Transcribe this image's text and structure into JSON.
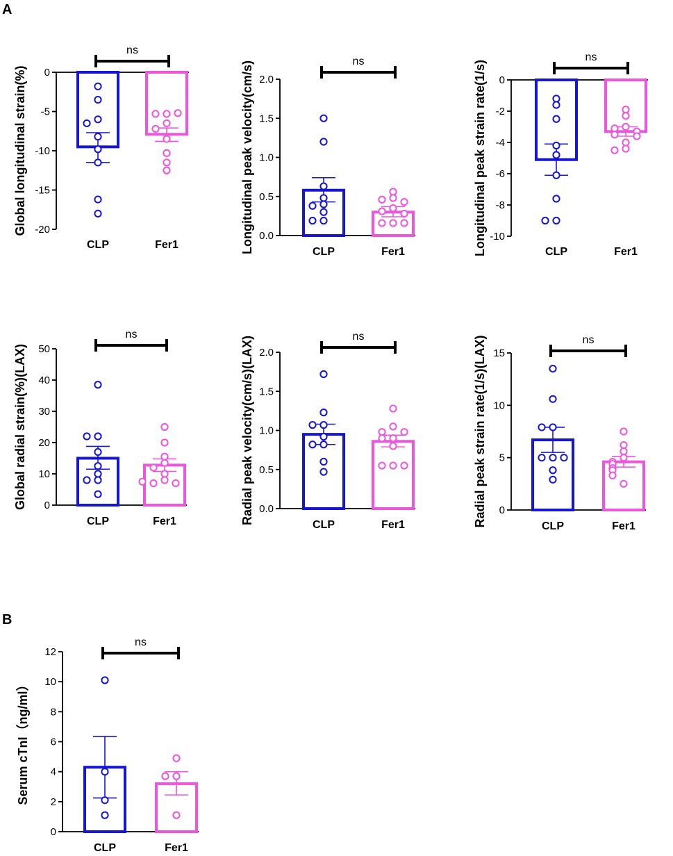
{
  "panel_labels": [
    "A",
    "B"
  ],
  "chart_data": [
    {
      "type": "bar",
      "panel": "A",
      "title": "",
      "xlabel": "",
      "ylabel": "Global longitudinal strain(%)",
      "categories": [
        "CLP",
        "Fer1"
      ],
      "ylim": [
        -20,
        0
      ],
      "yticks": [
        0,
        -5,
        -10,
        -15,
        -20
      ],
      "ytick_labels": [
        "0",
        "-5",
        "-10",
        "-15",
        "-20"
      ],
      "inverted": true,
      "series": [
        {
          "name": "CLP",
          "color": "#1515d6",
          "mean": -9.5,
          "sem_low": -11.5,
          "sem_high": -7.7,
          "points": [
            -1.8,
            -3.5,
            -6.0,
            -6.5,
            -8.2,
            -9.8,
            -11.5,
            -16.2,
            -18.0
          ]
        },
        {
          "name": "Fer1",
          "color": "#ee55dd",
          "mean": -7.9,
          "sem_low": -8.8,
          "sem_high": -7.1,
          "points": [
            -5.3,
            -5.3,
            -5.2,
            -6.5,
            -7.2,
            -8.5,
            -10.3,
            -11.5,
            -12.5
          ]
        }
      ],
      "significance": "ns"
    },
    {
      "type": "bar",
      "panel": "A",
      "title": "",
      "xlabel": "",
      "ylabel": "Longitudinal peak velocity(cm/s)",
      "categories": [
        "CLP",
        "Fer1"
      ],
      "ylim": [
        0,
        2.0
      ],
      "yticks": [
        0,
        0.5,
        1.0,
        1.5,
        2.0
      ],
      "ytick_labels": [
        "0.0",
        "0.5",
        "1.0",
        "1.5",
        "2.0"
      ],
      "inverted": false,
      "series": [
        {
          "name": "CLP",
          "color": "#1515d6",
          "mean": 0.58,
          "sem_low": 0.43,
          "sem_high": 0.74,
          "points": [
            1.5,
            1.2,
            0.63,
            0.48,
            0.4,
            0.38,
            0.3,
            0.19,
            0.19
          ]
        },
        {
          "name": "Fer1",
          "color": "#ee55dd",
          "mean": 0.3,
          "sem_low": 0.24,
          "sem_high": 0.37,
          "points": [
            0.56,
            0.48,
            0.46,
            0.43,
            0.35,
            0.31,
            0.28,
            0.16,
            0.16,
            0.16
          ]
        }
      ],
      "significance": "ns"
    },
    {
      "type": "bar",
      "panel": "A",
      "title": "",
      "xlabel": "",
      "ylabel": "Longitudinal peak strain rate(1/s)",
      "categories": [
        "CLP",
        "Fer1"
      ],
      "ylim": [
        -10,
        0
      ],
      "yticks": [
        0,
        -2,
        -4,
        -6,
        -8,
        -10
      ],
      "ytick_labels": [
        "0",
        "-2",
        "-4",
        "-6",
        "-8",
        "-10"
      ],
      "inverted": true,
      "series": [
        {
          "name": "CLP",
          "color": "#1515d6",
          "mean": -5.1,
          "sem_low": -6.1,
          "sem_high": -4.1,
          "points": [
            -1.2,
            -1.6,
            -2.5,
            -4.2,
            -4.8,
            -6.1,
            -7.6,
            -9.0,
            -9.0
          ]
        },
        {
          "name": "Fer1",
          "color": "#ee55dd",
          "mean": -3.3,
          "sem_low": -3.6,
          "sem_high": -3.0,
          "points": [
            -1.9,
            -2.3,
            -3.0,
            -3.1,
            -3.3,
            -3.5,
            -3.6,
            -4.0,
            -4.4,
            -4.5
          ]
        }
      ],
      "significance": "ns"
    },
    {
      "type": "bar",
      "panel": "A",
      "title": "",
      "xlabel": "",
      "ylabel": "Global radial strain(%)(LAX)",
      "categories": [
        "CLP",
        "Fer1"
      ],
      "ylim": [
        0,
        50
      ],
      "yticks": [
        0,
        10,
        20,
        30,
        40,
        50
      ],
      "ytick_labels": [
        "0",
        "10",
        "20",
        "30",
        "40",
        "50"
      ],
      "inverted": false,
      "series": [
        {
          "name": "CLP",
          "color": "#1515d6",
          "mean": 15.0,
          "sem_low": 11.5,
          "sem_high": 18.8,
          "points": [
            38.5,
            22.0,
            22.0,
            17.0,
            12.5,
            10.0,
            8.0,
            8.0,
            3.5
          ]
        },
        {
          "name": "Fer1",
          "color": "#ee55dd",
          "mean": 12.8,
          "sem_low": 10.8,
          "sem_high": 14.8,
          "points": [
            25.0,
            20.0,
            15.5,
            13.5,
            12.0,
            10.0,
            8.0,
            7.0,
            7.0,
            7.5
          ]
        }
      ],
      "significance": "ns"
    },
    {
      "type": "bar",
      "panel": "A",
      "title": "",
      "xlabel": "",
      "ylabel": "Radial peak velocity(cm/s)(LAX)",
      "categories": [
        "CLP",
        "Fer1"
      ],
      "ylim": [
        0,
        2.0
      ],
      "yticks": [
        0,
        0.5,
        1.0,
        1.5,
        2.0
      ],
      "ytick_labels": [
        "0.0",
        "0.5",
        "1.0",
        "1.5",
        "2.0"
      ],
      "inverted": false,
      "series": [
        {
          "name": "CLP",
          "color": "#1515d6",
          "mean": 0.95,
          "sem_low": 0.82,
          "sem_high": 1.08,
          "points": [
            1.72,
            1.23,
            1.07,
            1.07,
            0.92,
            0.82,
            0.82,
            0.6,
            0.47
          ]
        },
        {
          "name": "Fer1",
          "color": "#ee55dd",
          "mean": 0.86,
          "sem_low": 0.79,
          "sem_high": 0.94,
          "points": [
            1.28,
            1.05,
            0.98,
            0.98,
            0.9,
            0.9,
            0.8,
            0.55,
            0.55,
            0.55
          ]
        }
      ],
      "significance": "ns"
    },
    {
      "type": "bar",
      "panel": "A",
      "title": "",
      "xlabel": "",
      "ylabel": "Radial peak strain rate(1/s)(LAX)",
      "categories": [
        "CLP",
        "Fer1"
      ],
      "ylim": [
        0,
        15
      ],
      "yticks": [
        0,
        5,
        10,
        15
      ],
      "ytick_labels": [
        "0",
        "5",
        "10",
        "15"
      ],
      "inverted": false,
      "series": [
        {
          "name": "CLP",
          "color": "#1515d6",
          "mean": 6.7,
          "sem_low": 5.5,
          "sem_high": 7.9,
          "points": [
            13.5,
            10.6,
            7.9,
            7.9,
            5.0,
            5.0,
            5.0,
            3.8,
            2.9
          ]
        },
        {
          "name": "Fer1",
          "color": "#ee55dd",
          "mean": 4.6,
          "sem_low": 4.1,
          "sem_high": 5.1,
          "points": [
            7.5,
            6.2,
            5.6,
            5.0,
            4.6,
            4.4,
            4.0,
            3.8,
            3.3,
            2.5
          ]
        }
      ],
      "significance": "ns"
    },
    {
      "type": "bar",
      "panel": "B",
      "title": "",
      "xlabel": "",
      "ylabel": "Serum cTnI（ng/ml）",
      "categories": [
        "CLP",
        "Fer1"
      ],
      "ylim": [
        0,
        12
      ],
      "yticks": [
        0,
        2,
        4,
        6,
        8,
        10,
        12
      ],
      "ytick_labels": [
        "0",
        "2",
        "4",
        "6",
        "8",
        "10",
        "12"
      ],
      "inverted": false,
      "series": [
        {
          "name": "CLP",
          "color": "#1515d6",
          "mean": 4.3,
          "sem_low": 2.25,
          "sem_high": 6.35,
          "points": [
            10.1,
            4.0,
            2.1,
            1.1
          ]
        },
        {
          "name": "Fer1",
          "color": "#ee55dd",
          "mean": 3.2,
          "sem_low": 2.45,
          "sem_high": 4.0,
          "points": [
            4.9,
            3.7,
            3.7,
            1.1
          ]
        }
      ],
      "significance": "ns"
    }
  ]
}
